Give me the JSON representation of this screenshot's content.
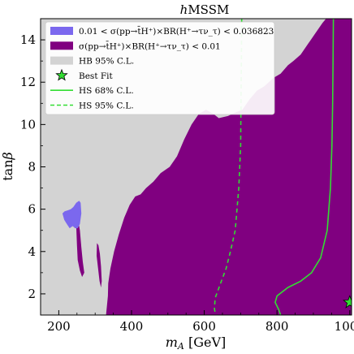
{
  "chart_data": {
    "type": "area",
    "title": "hMSSM",
    "xlabel": "m_A [GeV]",
    "ylabel": "tanβ",
    "xlim": [
      150,
      1005
    ],
    "ylim": [
      1,
      15
    ],
    "xticks": [
      200,
      400,
      600,
      800,
      1000
    ],
    "yticks": [
      2,
      4,
      6,
      8,
      10,
      12,
      14
    ],
    "grid": false,
    "legend_position": "top-left",
    "colors": {
      "hb_excluded": "#d3d3d3",
      "sigma_high": "#7b68ee",
      "sigma_low": "#800080",
      "hs_line": "#33dd33",
      "best_fit": "#33dd33"
    },
    "legend": [
      {
        "key": "sigma_high",
        "label": "0.01 < σ(pp→t̄H⁺)×BR(H⁺→τν_τ) < 0.036823",
        "style": "patch"
      },
      {
        "key": "sigma_low",
        "label": "σ(pp→t̄H⁺)×BR(H⁺→τν_τ) < 0.01",
        "style": "patch"
      },
      {
        "key": "hb_excluded",
        "label": "HB 95% C.L.",
        "style": "patch"
      },
      {
        "key": "best_fit",
        "label": "Best Fit",
        "style": "star"
      },
      {
        "key": "hs_line",
        "label": "HS 68% C.L.",
        "style": "solid"
      },
      {
        "key": "hs_line",
        "label": "HS 95% C.L.",
        "style": "dashed"
      }
    ],
    "regions": {
      "sigma_low_main": [
        [
          330,
          1
        ],
        [
          335,
          1.9
        ],
        [
          336,
          2.5
        ],
        [
          342,
          3.2
        ],
        [
          352,
          4.0
        ],
        [
          365,
          4.8
        ],
        [
          380,
          5.6
        ],
        [
          395,
          6.2
        ],
        [
          410,
          6.6
        ],
        [
          425,
          6.7
        ],
        [
          440,
          7.0
        ],
        [
          460,
          7.3
        ],
        [
          480,
          7.7
        ],
        [
          505,
          8.0
        ],
        [
          525,
          8.5
        ],
        [
          545,
          9.3
        ],
        [
          565,
          10.0
        ],
        [
          585,
          10.5
        ],
        [
          605,
          10.7
        ],
        [
          625,
          10.5
        ],
        [
          640,
          10.3
        ],
        [
          665,
          10.4
        ],
        [
          690,
          10.6
        ],
        [
          705,
          10.7
        ],
        [
          725,
          11.2
        ],
        [
          745,
          11.6
        ],
        [
          765,
          11.8
        ],
        [
          790,
          12.2
        ],
        [
          810,
          12.4
        ],
        [
          830,
          12.8
        ],
        [
          845,
          13.0
        ],
        [
          865,
          13.3
        ],
        [
          885,
          13.8
        ],
        [
          905,
          14.3
        ],
        [
          925,
          14.8
        ],
        [
          935,
          15
        ],
        [
          1005,
          15
        ],
        [
          1005,
          1
        ]
      ],
      "sigma_low_island_1": [
        [
          243,
          5.9
        ],
        [
          252,
          5.6
        ],
        [
          258,
          5.0
        ],
        [
          262,
          4.2
        ],
        [
          266,
          3.5
        ],
        [
          270,
          3.0
        ],
        [
          264,
          2.8
        ],
        [
          258,
          3.1
        ],
        [
          252,
          3.6
        ],
        [
          250,
          4.3
        ],
        [
          248,
          5.2
        ]
      ],
      "sigma_low_island_2": [
        [
          226,
          5.8
        ],
        [
          238,
          5.6
        ],
        [
          250,
          5.5
        ],
        [
          255,
          5.2
        ],
        [
          245,
          5.1
        ],
        [
          235,
          5.3
        ],
        [
          226,
          5.5
        ]
      ],
      "sigma_low_island_3": [
        [
          305,
          4.4
        ],
        [
          309,
          4.3
        ],
        [
          313,
          3.9
        ],
        [
          316,
          3.3
        ],
        [
          318,
          2.6
        ],
        [
          316,
          2.3
        ],
        [
          312,
          2.6
        ],
        [
          308,
          3.2
        ],
        [
          304,
          3.8
        ]
      ],
      "sigma_high_island": [
        [
          210,
          5.8
        ],
        [
          216,
          5.9
        ],
        [
          226,
          5.95
        ],
        [
          233,
          6.0
        ],
        [
          240,
          6.1
        ],
        [
          248,
          6.3
        ],
        [
          256,
          6.4
        ],
        [
          260,
          6.3
        ],
        [
          262,
          5.8
        ],
        [
          258,
          5.3
        ],
        [
          252,
          5.1
        ],
        [
          246,
          5.1
        ],
        [
          238,
          5.2
        ],
        [
          230,
          5.1
        ],
        [
          222,
          5.3
        ],
        [
          215,
          5.5
        ]
      ]
    },
    "hs_68": [
      [
        955,
        15
      ],
      [
        954,
        13
      ],
      [
        953,
        11
      ],
      [
        951,
        9
      ],
      [
        947,
        7
      ],
      [
        938,
        5
      ],
      [
        920,
        3.7
      ],
      [
        895,
        3.0
      ],
      [
        865,
        2.6
      ],
      [
        830,
        2.3
      ],
      [
        800,
        1.9
      ],
      [
        795,
        1.6
      ],
      [
        805,
        1.25
      ],
      [
        810,
        1
      ]
    ],
    "hs_95": [
      [
        703,
        15
      ],
      [
        702,
        13
      ],
      [
        701,
        11
      ],
      [
        700,
        9
      ],
      [
        695,
        7
      ],
      [
        685,
        5
      ],
      [
        672,
        4.0
      ],
      [
        660,
        3.2
      ],
      [
        645,
        2.5
      ],
      [
        630,
        1.8
      ],
      [
        628,
        1.3
      ],
      [
        631,
        1
      ]
    ],
    "best_fit_point": [
      1000,
      1.6
    ]
  }
}
